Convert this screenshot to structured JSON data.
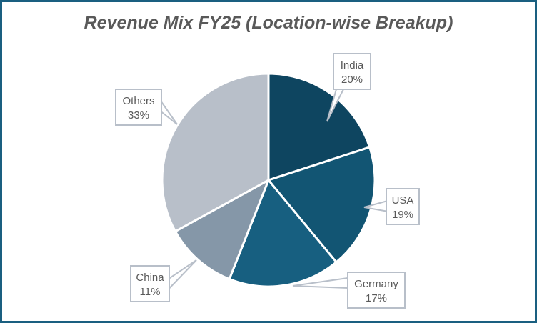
{
  "chart_data": {
    "type": "pie",
    "title": "Revenue Mix FY25 (Location-wise Breakup)",
    "categories": [
      "India",
      "USA",
      "Germany",
      "China",
      "Others"
    ],
    "values": [
      20,
      19,
      17,
      11,
      33
    ],
    "unit": "%",
    "colors": [
      "#0e4560",
      "#125573",
      "#175f80",
      "#8597a8",
      "#b8bfc9"
    ],
    "start_angle": "12 o'clock",
    "direction": "clockwise",
    "data_labels": [
      {
        "name": "India",
        "value": "20%"
      },
      {
        "name": "USA",
        "value": "19%"
      },
      {
        "name": "Germany",
        "value": "17%"
      },
      {
        "name": "China",
        "value": "11%"
      },
      {
        "name": "Others",
        "value": "33%"
      }
    ],
    "legend": "none"
  },
  "title": "Revenue Mix FY25 (Location-wise Breakup)",
  "frame_color": "#1a5f80"
}
